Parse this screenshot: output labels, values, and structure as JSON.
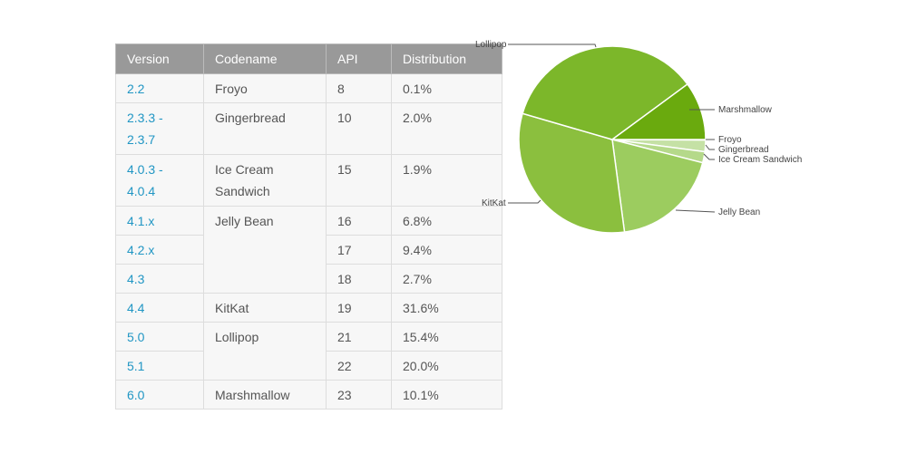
{
  "table": {
    "headers": [
      "Version",
      "Codename",
      "API",
      "Distribution"
    ],
    "rows": [
      {
        "version": "2.2",
        "codename": "Froyo",
        "api": "8",
        "dist": "0.1%"
      },
      {
        "version": "2.3.3 - 2.3.7",
        "codename": "Gingerbread",
        "api": "10",
        "dist": "2.0%"
      },
      {
        "version": "4.0.3 - 4.0.4",
        "codename": "Ice Cream Sandwich",
        "api": "15",
        "dist": "1.9%"
      },
      {
        "version": "4.1.x",
        "codename": "Jelly Bean",
        "api": "16",
        "dist": "6.8%"
      },
      {
        "version": "4.2.x",
        "api": "17",
        "dist": "9.4%"
      },
      {
        "version": "4.3",
        "api": "18",
        "dist": "2.7%"
      },
      {
        "version": "4.4",
        "codename": "KitKat",
        "api": "19",
        "dist": "31.6%"
      },
      {
        "version": "5.0",
        "codename": "Lollipop",
        "api": "21",
        "dist": "15.4%"
      },
      {
        "version": "5.1",
        "api": "22",
        "dist": "20.0%"
      },
      {
        "version": "6.0",
        "codename": "Marshmallow",
        "api": "23",
        "dist": "10.1%"
      }
    ]
  },
  "chart_data": {
    "type": "pie",
    "categories": [
      "Froyo",
      "Gingerbread",
      "Ice Cream Sandwich",
      "Jelly Bean",
      "KitKat",
      "Lollipop",
      "Marshmallow"
    ],
    "values": [
      0.1,
      2.0,
      1.9,
      18.9,
      31.6,
      35.4,
      10.1
    ],
    "colors": [
      "#c5e1a5",
      "#c5e1a5",
      "#b5d98a",
      "#9ccc5f",
      "#8bbf3e",
      "#7cb72a",
      "#6aaa0e"
    ],
    "start": "3 o'clock, clockwise"
  }
}
